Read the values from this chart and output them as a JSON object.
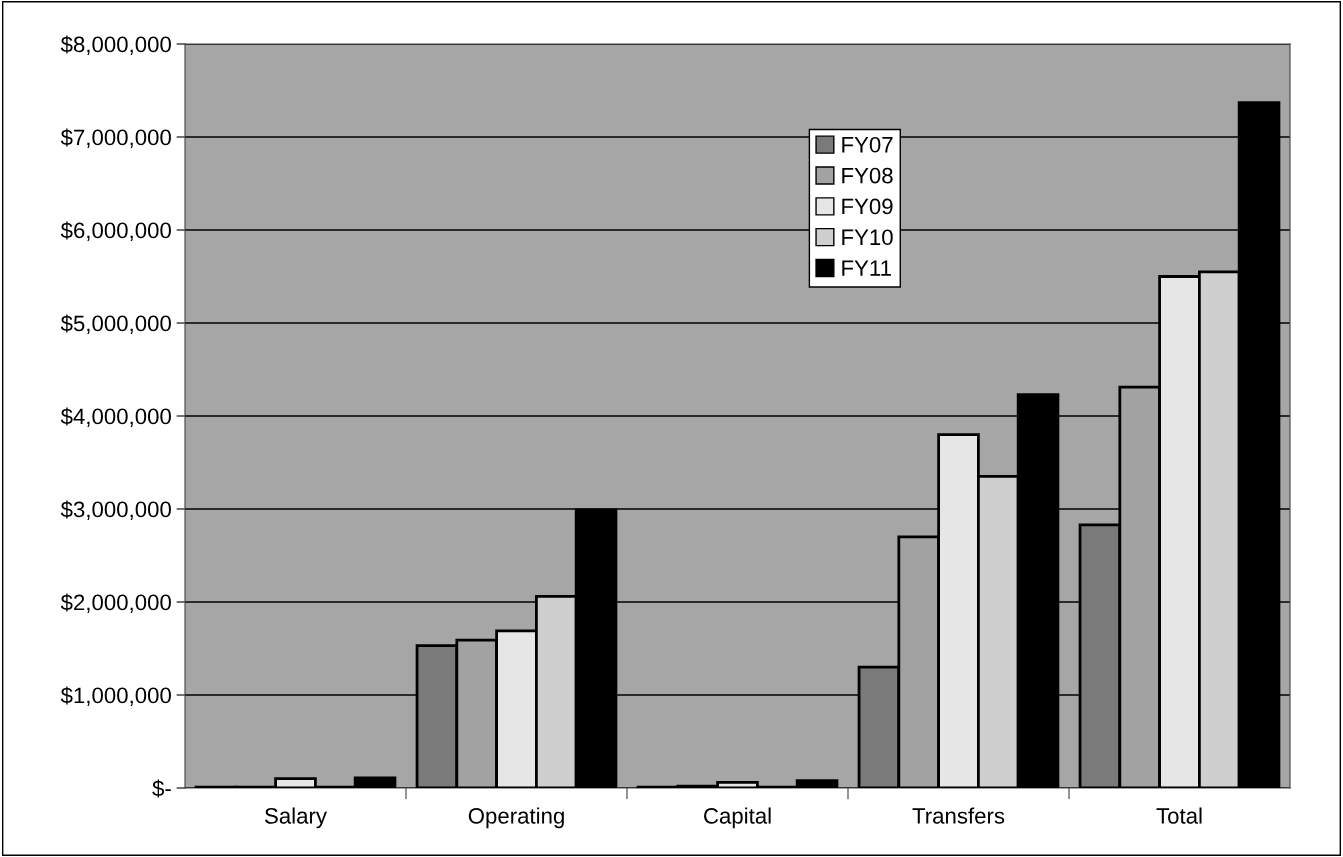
{
  "chart_data": {
    "type": "bar",
    "categories": [
      "Salary",
      "Operating",
      "Capital",
      "Transfers",
      "Total"
    ],
    "series": [
      {
        "name": "FY07",
        "color": "#7a7a7a",
        "values": [
          10000,
          1530000,
          10000,
          1300000,
          2830000
        ]
      },
      {
        "name": "FY08",
        "color": "#a2a2a2",
        "values": [
          10000,
          1590000,
          20000,
          2700000,
          4310000
        ]
      },
      {
        "name": "FY09",
        "color": "#e6e6e6",
        "values": [
          100000,
          1690000,
          60000,
          3800000,
          5500000
        ]
      },
      {
        "name": "FY10",
        "color": "#cfcfcf",
        "values": [
          10000,
          2060000,
          10000,
          3350000,
          5550000
        ]
      },
      {
        "name": "FY11",
        "color": "#000000",
        "values": [
          110000,
          2990000,
          80000,
          4230000,
          7370000
        ]
      }
    ],
    "ylim": [
      0,
      8000000
    ],
    "yticks": [
      {
        "value": 0,
        "label": "$-"
      },
      {
        "value": 1000000,
        "label": "$1,000,000"
      },
      {
        "value": 2000000,
        "label": "$2,000,000"
      },
      {
        "value": 3000000,
        "label": "$3,000,000"
      },
      {
        "value": 4000000,
        "label": "$4,000,000"
      },
      {
        "value": 5000000,
        "label": "$5,000,000"
      },
      {
        "value": 6000000,
        "label": "$6,000,000"
      },
      {
        "value": 7000000,
        "label": "$7,000,000"
      },
      {
        "value": 8000000,
        "label": "$8,000,000"
      }
    ],
    "grid": "y",
    "legend": "top center"
  }
}
